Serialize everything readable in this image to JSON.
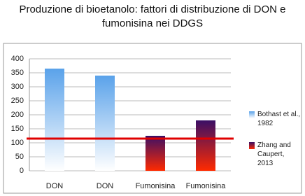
{
  "chart_data": {
    "type": "bar",
    "title": "Produzione di bioetanolo: fattori di distribuzione di DON e fumonisina nei DDGS",
    "categories": [
      "DON",
      "DON",
      "Fumonisina",
      "Fumonisina"
    ],
    "series": [
      {
        "name": "Bothast et al., 1982",
        "color": "#5aa2ea",
        "values": [
          365,
          340,
          null,
          null
        ]
      },
      {
        "name": "Zhang and Caupert, 2013",
        "color": "#3a0f66",
        "values": [
          null,
          null,
          125,
          180
        ]
      }
    ],
    "reference_line": {
      "value": 115,
      "color": "#e00000"
    },
    "ylim": [
      0,
      400
    ],
    "yticks": [
      0,
      50,
      100,
      150,
      200,
      250,
      300,
      350,
      400
    ],
    "grid": true
  }
}
